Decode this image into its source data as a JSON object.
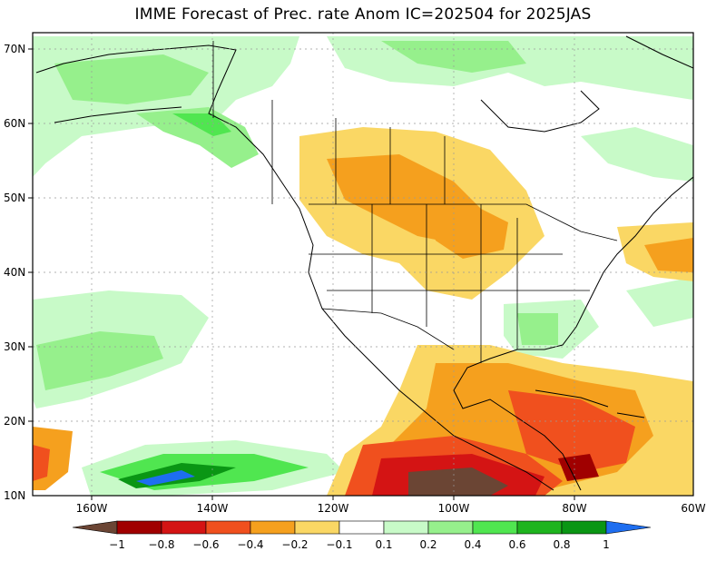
{
  "title": "IMME Forecast of Prec. rate Anom IC=202504 for 2025JAS",
  "lat_labels": [
    "70N",
    "60N",
    "50N",
    "40N",
    "30N",
    "20N",
    "10N"
  ],
  "lon_labels": [
    "160W",
    "140W",
    "120W",
    "100W",
    "80W",
    "60W"
  ],
  "colorbar": {
    "tick_labels": [
      "−1",
      "−0.8",
      "−0.6",
      "−0.4",
      "−0.2",
      "−0.1",
      "0.1",
      "0.2",
      "0.4",
      "0.6",
      "0.8",
      "1"
    ],
    "colors": [
      "#6b4534",
      "#a00000",
      "#d41414",
      "#f0501e",
      "#f5a01e",
      "#fad764",
      "#ffffff",
      "#c8fac8",
      "#96f08c",
      "#50e650",
      "#1eb41e",
      "#0a9614",
      "#1e6ef0"
    ]
  }
}
